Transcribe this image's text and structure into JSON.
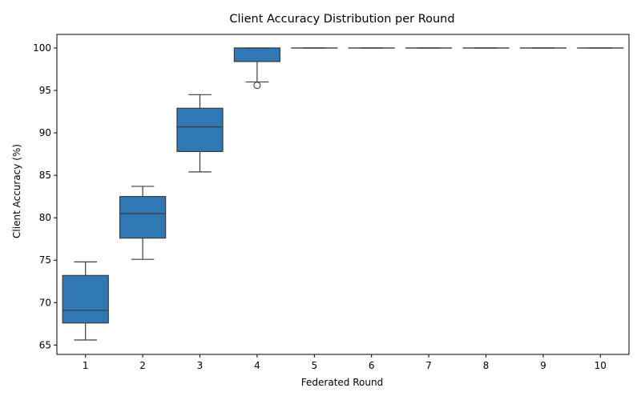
{
  "chart_data": {
    "type": "box",
    "title": "Client Accuracy Distribution per Round",
    "xlabel": "Federated Round",
    "ylabel": "Client Accuracy (%)",
    "ylim": [
      63.9,
      101.6
    ],
    "yticks": [
      65,
      70,
      75,
      80,
      85,
      90,
      95,
      100
    ],
    "categories": [
      "1",
      "2",
      "3",
      "4",
      "5",
      "6",
      "7",
      "8",
      "9",
      "10"
    ],
    "box_color": "#2f78b3",
    "line_color": "#3d3d3d",
    "boxes": [
      {
        "category": "1",
        "whislo": 65.6,
        "q1": 67.6,
        "med": 69.1,
        "q3": 73.2,
        "whishi": 74.8,
        "fliers": []
      },
      {
        "category": "2",
        "whislo": 75.1,
        "q1": 77.6,
        "med": 80.5,
        "q3": 82.5,
        "whishi": 83.7,
        "fliers": []
      },
      {
        "category": "3",
        "whislo": 85.4,
        "q1": 87.8,
        "med": 90.7,
        "q3": 92.9,
        "whishi": 94.5,
        "fliers": []
      },
      {
        "category": "4",
        "whislo": 96.0,
        "q1": 98.4,
        "med": 100.0,
        "q3": 100.0,
        "whishi": 100.0,
        "fliers": [
          95.6
        ]
      },
      {
        "category": "5",
        "whislo": 100.0,
        "q1": 100.0,
        "med": 100.0,
        "q3": 100.0,
        "whishi": 100.0,
        "fliers": []
      },
      {
        "category": "6",
        "whislo": 100.0,
        "q1": 100.0,
        "med": 100.0,
        "q3": 100.0,
        "whishi": 100.0,
        "fliers": []
      },
      {
        "category": "7",
        "whislo": 100.0,
        "q1": 100.0,
        "med": 100.0,
        "q3": 100.0,
        "whishi": 100.0,
        "fliers": []
      },
      {
        "category": "8",
        "whislo": 100.0,
        "q1": 100.0,
        "med": 100.0,
        "q3": 100.0,
        "whishi": 100.0,
        "fliers": []
      },
      {
        "category": "9",
        "whislo": 100.0,
        "q1": 100.0,
        "med": 100.0,
        "q3": 100.0,
        "whishi": 100.0,
        "fliers": []
      },
      {
        "category": "10",
        "whislo": 100.0,
        "q1": 100.0,
        "med": 100.0,
        "q3": 100.0,
        "whishi": 100.0,
        "fliers": []
      }
    ],
    "grid": false,
    "legend": "none"
  }
}
